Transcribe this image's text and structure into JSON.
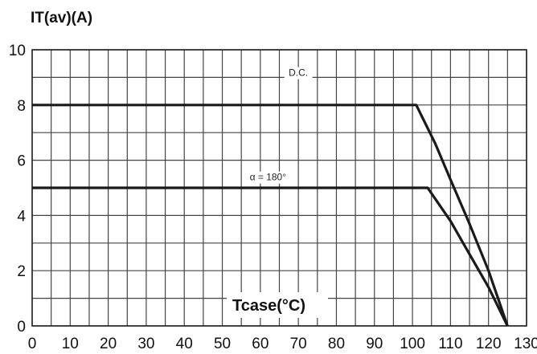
{
  "chart_data": {
    "type": "line",
    "title": "",
    "ylabel": "IT(av)(A)",
    "xlabel": "Tcase(°C)",
    "xlim": [
      0,
      130
    ],
    "ylim": [
      0,
      10
    ],
    "x_ticks": [
      0,
      10,
      20,
      30,
      40,
      50,
      60,
      70,
      80,
      90,
      100,
      110,
      120,
      130
    ],
    "y_ticks": [
      0,
      2,
      4,
      6,
      8,
      10
    ],
    "grid": true,
    "series": [
      {
        "name": "D.C.",
        "x": [
          0,
          101,
          106,
          110,
          115,
          120,
          125
        ],
        "y": [
          8,
          8,
          6.6,
          5.3,
          3.7,
          2.0,
          0
        ]
      },
      {
        "name": "α = 180°",
        "x": [
          0,
          104,
          106,
          110,
          115,
          120,
          125
        ],
        "y": [
          5,
          5,
          4.6,
          3.8,
          2.6,
          1.4,
          0
        ]
      }
    ],
    "annotations": [
      "D.C.",
      "α = 180°"
    ]
  }
}
